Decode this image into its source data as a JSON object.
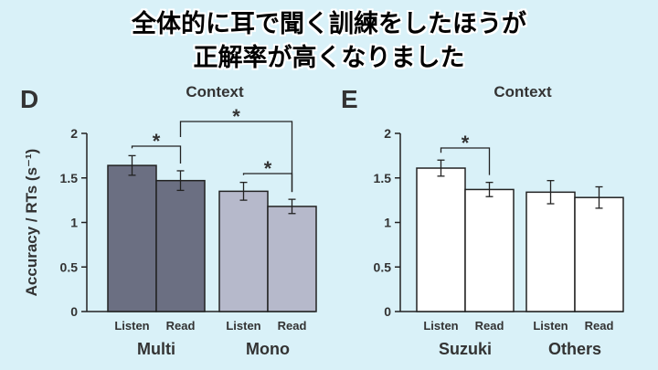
{
  "headline": {
    "line1": "全体的に耳で聞く訓練をしたほうが",
    "line2": "正解率が高くなりました"
  },
  "colors": {
    "background": "#d9f1f8",
    "multi_bar": "#6b6f82",
    "mono_bar": "#b6b9cb",
    "white_bar": "#ffffff",
    "outline": "#222222"
  },
  "chart_data": [
    {
      "type": "bar",
      "panel_letter": "D",
      "title": "Context",
      "ylabel": "Accuracy / RTs (s⁻¹)",
      "ylim": [
        0,
        2
      ],
      "yticks": [
        "0",
        "0.5",
        "1",
        "1.5",
        "2"
      ],
      "bar_labels": [
        "Listen",
        "Read"
      ],
      "groups": [
        {
          "name": "Multi",
          "values": [
            1.64,
            1.47
          ],
          "errors": [
            0.11,
            0.11
          ],
          "color": "#6b6f82"
        },
        {
          "name": "Mono",
          "values": [
            1.35,
            1.18
          ],
          "errors": [
            0.1,
            0.08
          ],
          "color": "#b6b9cb"
        }
      ],
      "significance": [
        {
          "between": "Multi Listen vs Multi Read",
          "label": "*"
        },
        {
          "between": "Mono Listen vs Mono Read",
          "label": "*"
        },
        {
          "between": "Multi Read vs Mono Read",
          "label": "*"
        }
      ],
      "grid": false
    },
    {
      "type": "bar",
      "panel_letter": "E",
      "title": "Context",
      "ylim": [
        0,
        2
      ],
      "yticks": [
        "0",
        "0.5",
        "1",
        "1.5",
        "2"
      ],
      "bar_labels": [
        "Listen",
        "Read"
      ],
      "groups": [
        {
          "name": "Suzuki",
          "values": [
            1.61,
            1.37
          ],
          "errors": [
            0.09,
            0.08
          ],
          "color": "#ffffff"
        },
        {
          "name": "Others",
          "values": [
            1.34,
            1.28
          ],
          "errors": [
            0.13,
            0.12
          ],
          "color": "#ffffff"
        }
      ],
      "significance": [
        {
          "between": "Suzuki Listen vs Suzuki Read",
          "label": "*"
        }
      ],
      "grid": false
    }
  ]
}
